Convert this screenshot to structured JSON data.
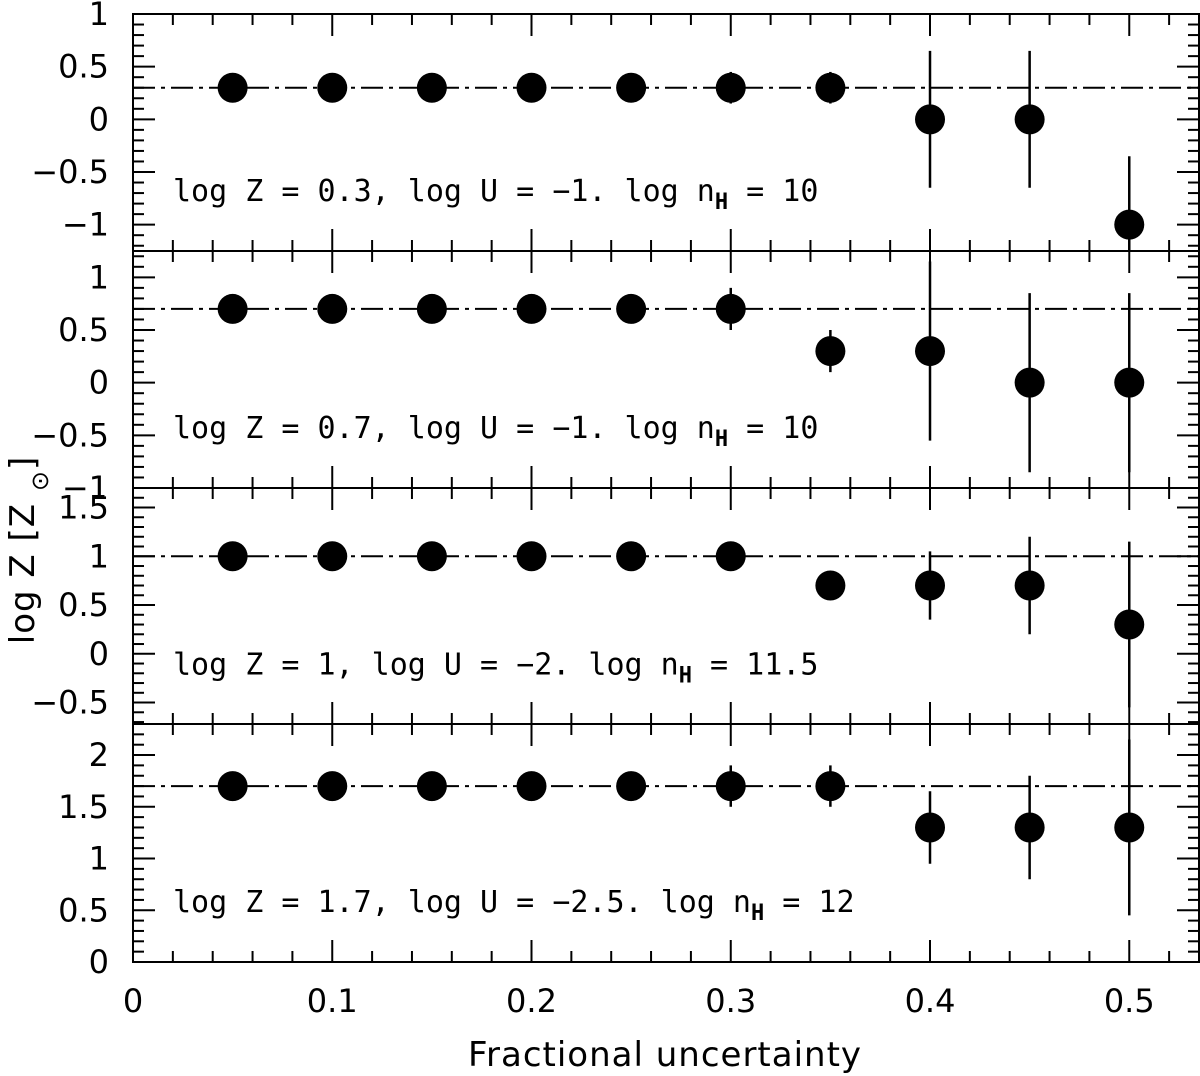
{
  "chart_data": {
    "type": "scatter",
    "xlabel": "Fractional uncertainty",
    "ylabel": "log Z [Z⊙]",
    "xlim": [
      0,
      0.535
    ],
    "x_ticks": [
      0,
      0.1,
      0.2,
      0.3,
      0.4,
      0.5
    ],
    "x_tick_labels": [
      "0",
      "0.1",
      "0.2",
      "0.3",
      "0.4",
      "0.5"
    ],
    "grid": false,
    "panels": [
      {
        "annotation": {
          "base": "log Z = 0.3, log U = −1. log n",
          "sub": "H",
          "tail": " = 10"
        },
        "reference_line": 0.3,
        "ylim": [
          -1.25,
          1.0
        ],
        "y_ticks": [
          -1,
          -0.5,
          0,
          0.5,
          1
        ],
        "y_tick_labels": [
          "−1",
          "−0.5",
          "0",
          "0.5",
          "1"
        ],
        "points": [
          {
            "x": 0.05,
            "y": 0.3,
            "err": 0.05
          },
          {
            "x": 0.1,
            "y": 0.3,
            "err": 0.05
          },
          {
            "x": 0.15,
            "y": 0.3,
            "err": 0.05
          },
          {
            "x": 0.2,
            "y": 0.3,
            "err": 0.05
          },
          {
            "x": 0.25,
            "y": 0.3,
            "err": 0.05
          },
          {
            "x": 0.3,
            "y": 0.3,
            "err": 0.15
          },
          {
            "x": 0.35,
            "y": 0.3,
            "err": 0.15
          },
          {
            "x": 0.4,
            "y": 0.0,
            "err": 0.65
          },
          {
            "x": 0.45,
            "y": 0.0,
            "err": 0.65
          },
          {
            "x": 0.5,
            "y": -1.0,
            "err": 0.65
          }
        ]
      },
      {
        "annotation": {
          "base": "log Z = 0.7, log U = −1. log n",
          "sub": "H",
          "tail": " = 10"
        },
        "reference_line": 0.7,
        "ylim": [
          -1.0,
          1.25
        ],
        "y_ticks": [
          -1,
          -0.5,
          0,
          0.5,
          1
        ],
        "y_tick_labels": [
          "−1",
          "−0.5",
          "0",
          "0.5",
          "1"
        ],
        "points": [
          {
            "x": 0.05,
            "y": 0.7,
            "err": 0.05
          },
          {
            "x": 0.1,
            "y": 0.7,
            "err": 0.05
          },
          {
            "x": 0.15,
            "y": 0.7,
            "err": 0.05
          },
          {
            "x": 0.2,
            "y": 0.7,
            "err": 0.05
          },
          {
            "x": 0.25,
            "y": 0.7,
            "err": 0.05
          },
          {
            "x": 0.3,
            "y": 0.7,
            "err": 0.2
          },
          {
            "x": 0.35,
            "y": 0.3,
            "err": 0.2
          },
          {
            "x": 0.4,
            "y": 0.3,
            "err": 0.85
          },
          {
            "x": 0.45,
            "y": 0.0,
            "err": 0.85
          },
          {
            "x": 0.5,
            "y": 0.0,
            "err": 0.85
          }
        ]
      },
      {
        "annotation": {
          "base": "log Z = 1, log U = −2. log n",
          "sub": "H",
          "tail": " = 11.5"
        },
        "reference_line": 1.0,
        "ylim": [
          -0.72,
          1.7
        ],
        "y_ticks": [
          -0.5,
          0,
          0.5,
          1,
          1.5
        ],
        "y_tick_labels": [
          "−0.5",
          "0",
          "0.5",
          "1",
          "1.5"
        ],
        "points": [
          {
            "x": 0.05,
            "y": 1.0,
            "err": 0.05
          },
          {
            "x": 0.1,
            "y": 1.0,
            "err": 0.05
          },
          {
            "x": 0.15,
            "y": 1.0,
            "err": 0.05
          },
          {
            "x": 0.2,
            "y": 1.0,
            "err": 0.05
          },
          {
            "x": 0.25,
            "y": 1.0,
            "err": 0.1
          },
          {
            "x": 0.3,
            "y": 1.0,
            "err": 0.1
          },
          {
            "x": 0.35,
            "y": 0.7,
            "err": 0.1
          },
          {
            "x": 0.4,
            "y": 0.7,
            "err": 0.35
          },
          {
            "x": 0.45,
            "y": 0.7,
            "err": 0.5
          },
          {
            "x": 0.5,
            "y": 0.3,
            "err": 0.85
          }
        ]
      },
      {
        "annotation": {
          "base": "log Z = 1.7, log U = −2.5. log n",
          "sub": "H",
          "tail": " = 12"
        },
        "reference_line": 1.7,
        "ylim": [
          0,
          2.3
        ],
        "y_ticks": [
          0,
          0.5,
          1,
          1.5,
          2
        ],
        "y_tick_labels": [
          "0",
          "0.5",
          "1",
          "1.5",
          "2"
        ],
        "points": [
          {
            "x": 0.05,
            "y": 1.7,
            "err": 0.05
          },
          {
            "x": 0.1,
            "y": 1.7,
            "err": 0.05
          },
          {
            "x": 0.15,
            "y": 1.7,
            "err": 0.05
          },
          {
            "x": 0.2,
            "y": 1.7,
            "err": 0.05
          },
          {
            "x": 0.25,
            "y": 1.7,
            "err": 0.1
          },
          {
            "x": 0.3,
            "y": 1.7,
            "err": 0.2
          },
          {
            "x": 0.35,
            "y": 1.7,
            "err": 0.2
          },
          {
            "x": 0.4,
            "y": 1.3,
            "err": 0.35
          },
          {
            "x": 0.45,
            "y": 1.3,
            "err": 0.5
          },
          {
            "x": 0.5,
            "y": 1.3,
            "err": 0.85
          }
        ]
      }
    ]
  }
}
